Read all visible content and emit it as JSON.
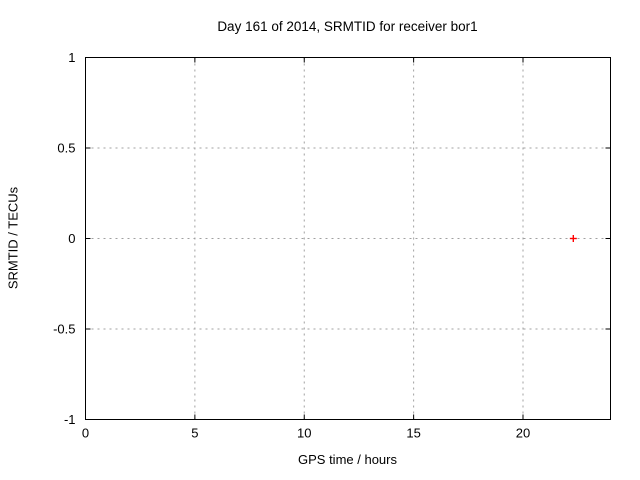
{
  "chart_data": {
    "type": "scatter",
    "title": "Day 161 of 2014, SRMTID for receiver bor1",
    "xlabel": "GPS time / hours",
    "ylabel": "SRMTID / TECUs",
    "xlim": [
      0,
      24
    ],
    "ylim": [
      -1,
      1
    ],
    "xticks": [
      {
        "value": 0,
        "label": "0"
      },
      {
        "value": 5,
        "label": "5"
      },
      {
        "value": 10,
        "label": "10"
      },
      {
        "value": 15,
        "label": "15"
      },
      {
        "value": 20,
        "label": "20"
      }
    ],
    "yticks": [
      {
        "value": -1,
        "label": "-1"
      },
      {
        "value": -0.5,
        "label": "-0.5"
      },
      {
        "value": 0,
        "label": "0"
      },
      {
        "value": 0.5,
        "label": "0.5"
      },
      {
        "value": 1,
        "label": "1"
      }
    ],
    "grid": true,
    "grid_style": "dashed",
    "legend_position": "none",
    "colors": {
      "axis": "#000000",
      "grid": "#a0a0a0",
      "background": "#ffffff"
    },
    "series": [
      {
        "name": "SRMTID",
        "marker": "plus",
        "color": "#ff0000",
        "points": [
          {
            "x": 22.3,
            "y": 0.0
          }
        ]
      }
    ]
  }
}
